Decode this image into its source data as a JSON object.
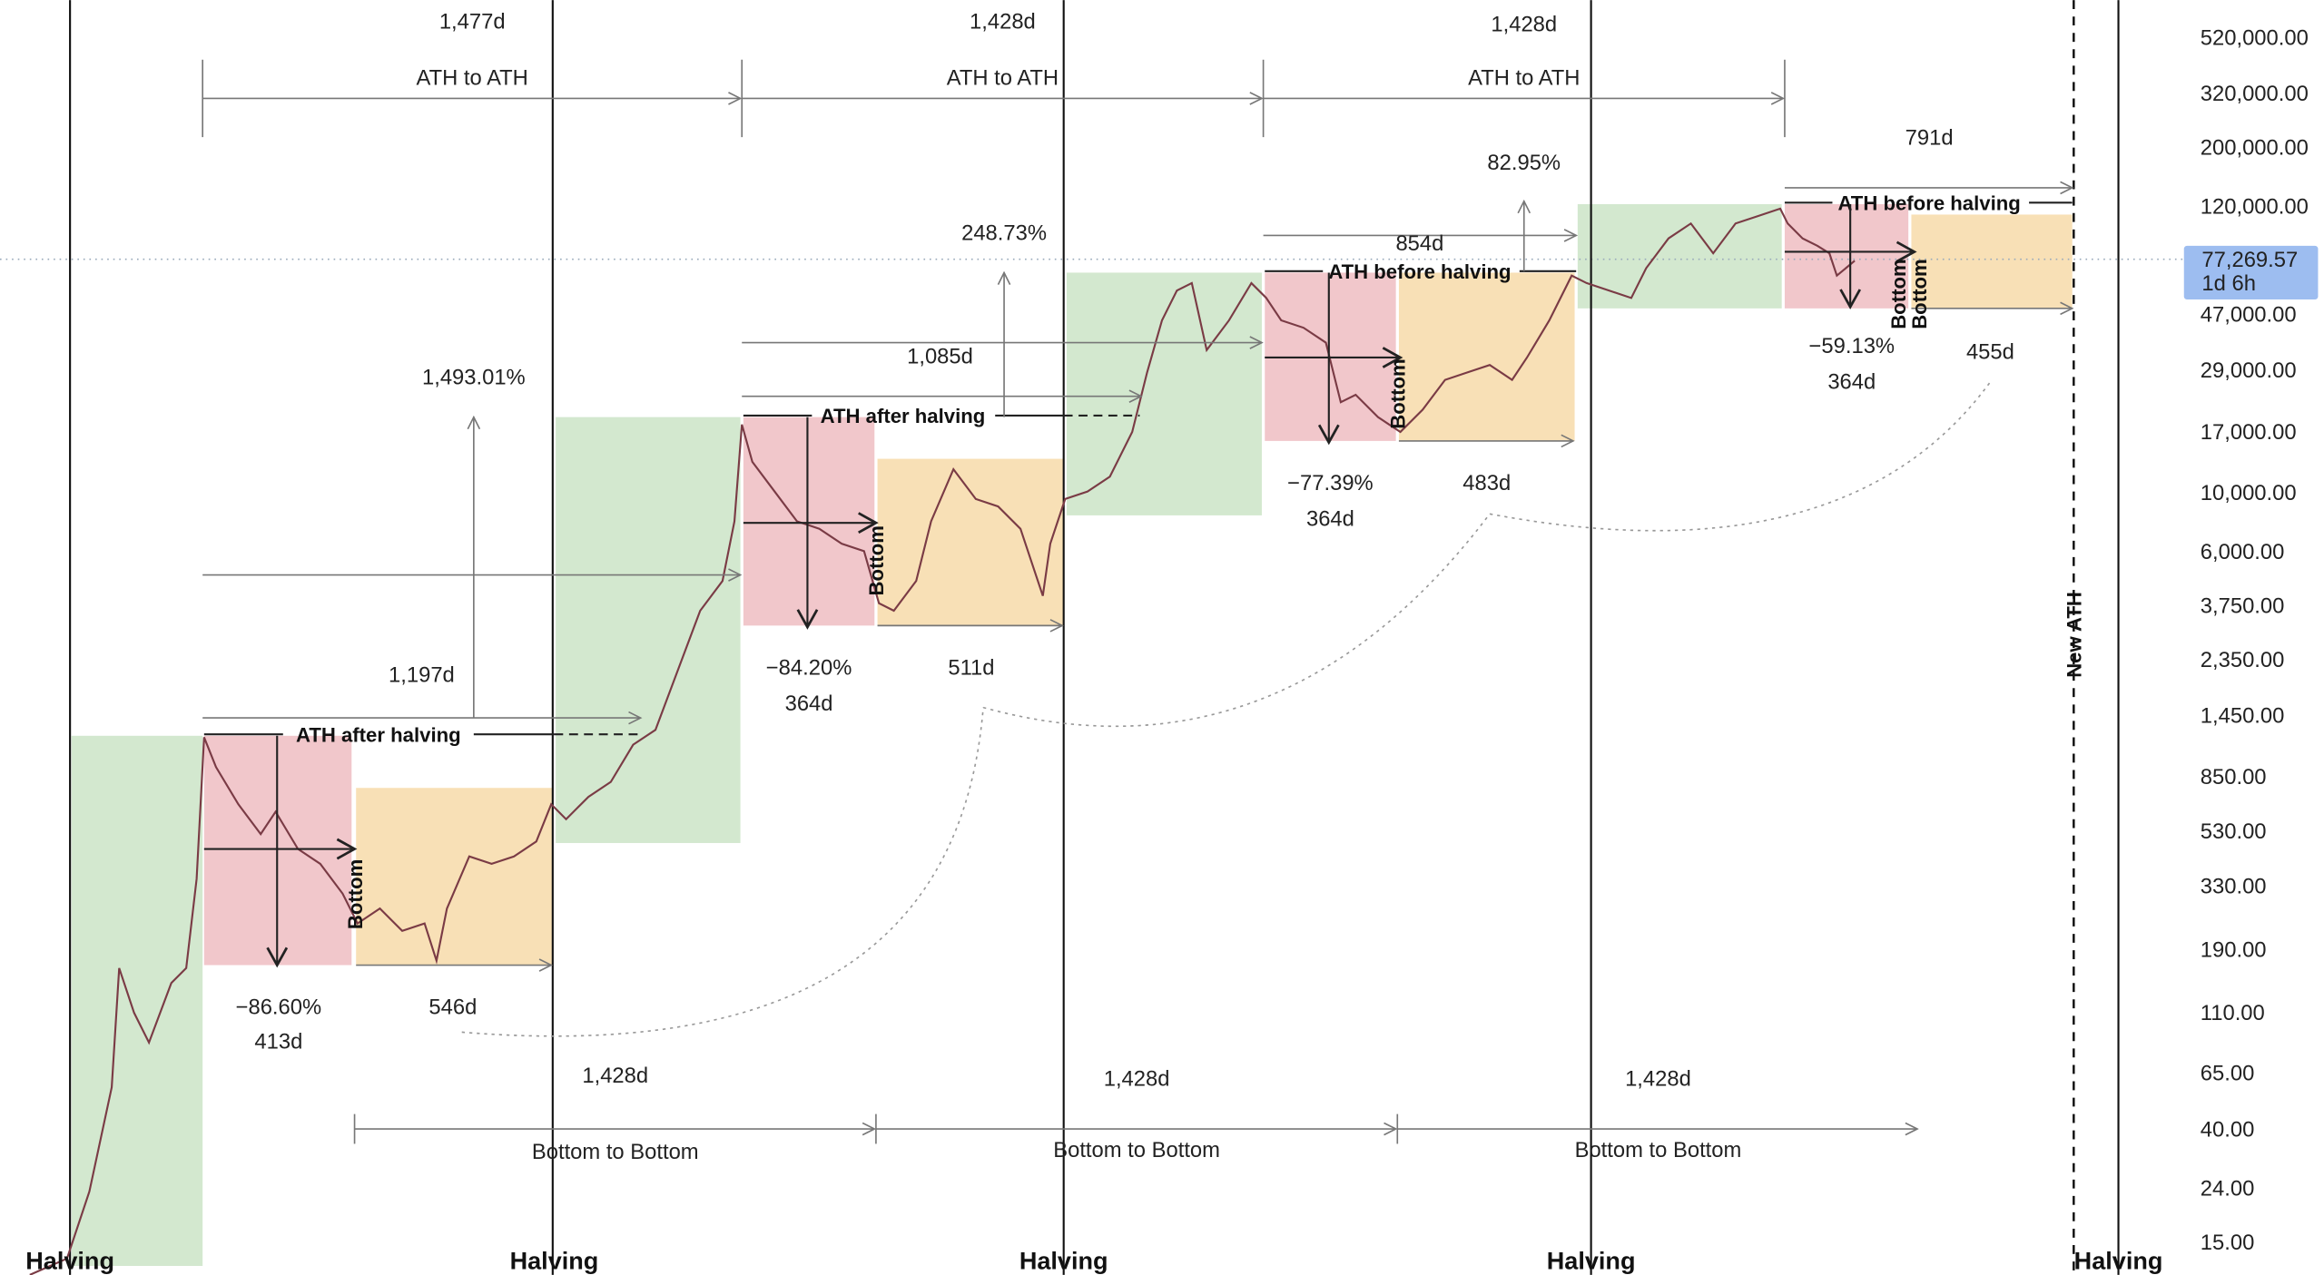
{
  "chart_data": {
    "type": "candlestick",
    "yscale": "log",
    "ylim": [
      15,
      520000
    ],
    "y_ticks": [
      "520,000.00",
      "320,000.00",
      "200,000.00",
      "120,000.00",
      "47,000.00",
      "29,000.00",
      "17,000.00",
      "10,000.00",
      "6,000.00",
      "3,750.00",
      "2,350.00",
      "1,450.00",
      "850.00",
      "530.00",
      "330.00",
      "190.00",
      "110.00",
      "65.00",
      "40.00",
      "24.00",
      "15.00"
    ],
    "y_tick_values": [
      520000,
      320000,
      200000,
      120000,
      47000,
      29000,
      17000,
      10000,
      6000,
      3750,
      2350,
      1450,
      850,
      530,
      330,
      190,
      110,
      65,
      40,
      24,
      15
    ],
    "current_price": {
      "value": "77,269.57",
      "countdown": "1d 6h",
      "color": "#9dbdf0"
    },
    "grid": false,
    "halving_label": "Halving",
    "halvings": [
      "Halving",
      "Halving",
      "Halving",
      "Halving",
      "Halving"
    ],
    "new_ath_label": "New ATH",
    "colors": {
      "bull": "#d3e8cf",
      "bear": "#f1c7cb",
      "accumulation": "#f8e0b6"
    },
    "ath_to_ath": [
      {
        "label": "ATH to ATH",
        "days": "1,477d"
      },
      {
        "label": "ATH to ATH",
        "days": "1,428d"
      },
      {
        "label": "ATH to ATH",
        "days": "1,428d"
      }
    ],
    "bottom_to_bottom": [
      {
        "label": "Bottom to Bottom",
        "days": "1,428d"
      },
      {
        "label": "Bottom to Bottom",
        "days": "1,428d"
      },
      {
        "label": "Bottom to Bottom",
        "days": "1,428d"
      }
    ],
    "cycles": [
      {
        "ath_label": "ATH after halving",
        "drawdown": "−86.60%",
        "drawdown_days": "413d",
        "bottom_label": "Bottom",
        "accumulation_days": "546d",
        "rally_days": "1,197d",
        "rally_pct": "1,493.01%"
      },
      {
        "ath_label": "ATH after halving",
        "drawdown": "−84.20%",
        "drawdown_days": "364d",
        "bottom_label": "Bottom",
        "accumulation_days": "511d",
        "rally_days": "1,085d",
        "rally_pct": "248.73%"
      },
      {
        "ath_label": "ATH before halving",
        "drawdown": "−77.39%",
        "drawdown_days": "364d",
        "bottom_label": "Bottom",
        "accumulation_days": "483d",
        "rally_days": "854d",
        "rally_pct": "82.95%"
      },
      {
        "ath_label": "ATH before halving",
        "drawdown": "−59.13%",
        "drawdown_days": "364d",
        "bottom_label": "Bottom",
        "bottom_label_2": "Bottom",
        "accumulation_days": "455d",
        "projection_days": "791d"
      }
    ]
  }
}
